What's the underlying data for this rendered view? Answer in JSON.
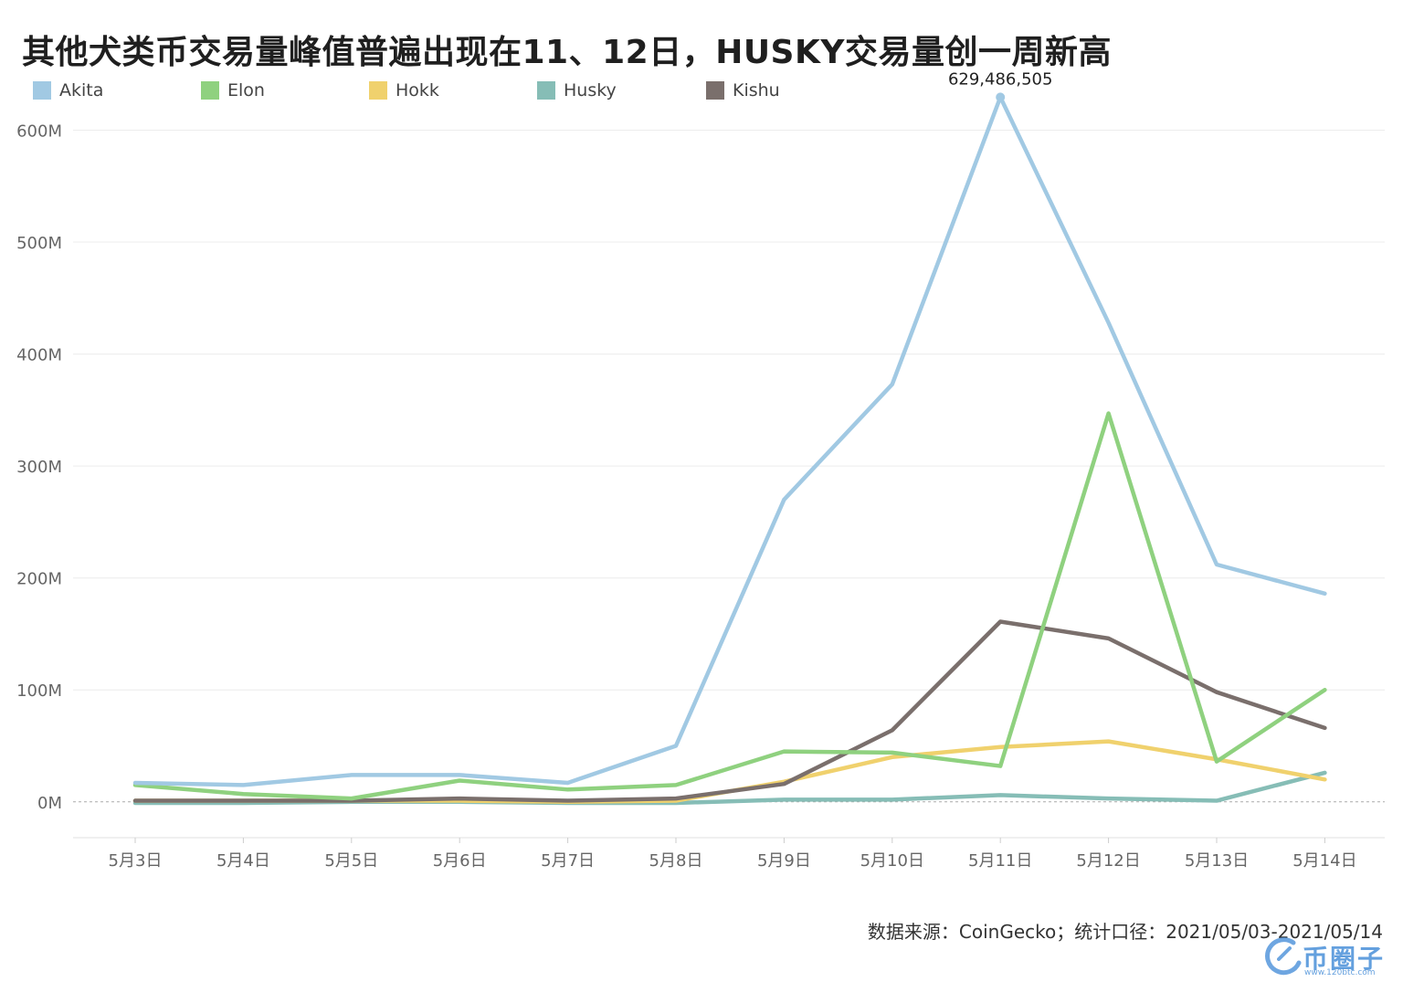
{
  "title": "其他犬类币交易量峰值普遍出现在11、12日，HUSKY交易量创一周新高",
  "source": "数据来源：CoinGecko；统计口径：2021/05/03-2021/05/14",
  "watermark": {
    "text": "币圈子",
    "url": "www.120btc.com"
  },
  "chart_data": {
    "type": "line",
    "title": "其他犬类币交易量峰值普遍出现在11、12日，HUSKY交易量创一周新高",
    "xlabel": "",
    "ylabel": "",
    "ylim": [
      -32,
      620
    ],
    "y_unit": "M",
    "y_ticks": [
      0,
      100,
      200,
      300,
      400,
      500,
      600
    ],
    "y_tick_labels": [
      "0M",
      "100M",
      "200M",
      "300M",
      "400M",
      "500M",
      "600M"
    ],
    "grid": true,
    "legend_position": "top-left",
    "categories": [
      "5月3日",
      "5月4日",
      "5月5日",
      "5月6日",
      "5月7日",
      "5月8日",
      "5月9日",
      "5月10日",
      "5月11日",
      "5月12日",
      "5月13日",
      "5月14日"
    ],
    "series": [
      {
        "name": "Akita",
        "color": "#a1c9e3",
        "values": [
          17,
          15,
          24,
          24,
          17,
          50,
          270,
          373,
          629.486505,
          428,
          212,
          186
        ]
      },
      {
        "name": "Elon",
        "color": "#8fd17f",
        "values": [
          15,
          7,
          3,
          19,
          11,
          15,
          45,
          44,
          32,
          347,
          36,
          100
        ]
      },
      {
        "name": "Hokk",
        "color": "#f0d16d",
        "values": [
          1,
          1,
          1,
          1,
          0,
          1,
          18,
          40,
          49,
          54,
          38,
          20
        ]
      },
      {
        "name": "Husky",
        "color": "#86bdb6",
        "values": [
          -1,
          -1,
          0,
          0,
          -1,
          -1,
          2,
          2,
          6,
          3,
          1,
          26
        ]
      },
      {
        "name": "Kishu",
        "color": "#7a6f6c",
        "values": [
          1,
          1,
          1,
          3,
          1,
          3,
          16,
          64,
          161,
          146,
          98,
          66
        ]
      }
    ],
    "annotations": [
      {
        "series": "Akita",
        "category": "5月11日",
        "text": "629,486,505"
      }
    ]
  }
}
